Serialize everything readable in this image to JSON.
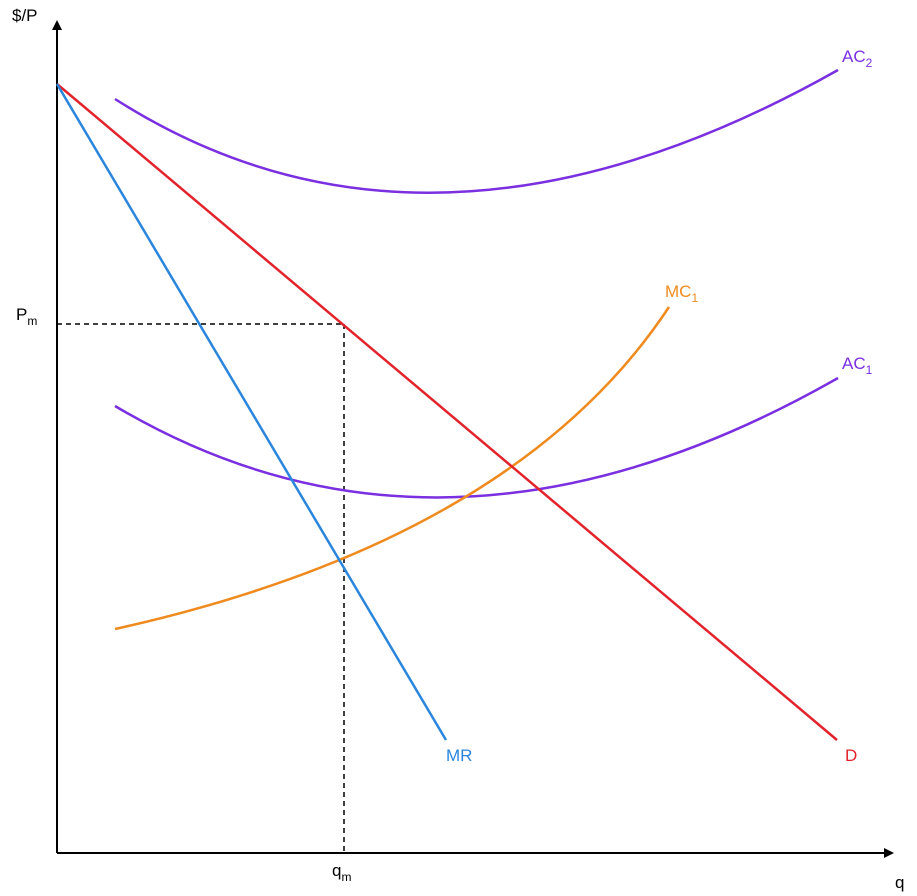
{
  "axes": {
    "y_label": "$/P",
    "x_label": "q"
  },
  "marks": {
    "price": {
      "main": "P",
      "sub": "m"
    },
    "quantity": {
      "main": "q",
      "sub": "m"
    }
  },
  "curves": {
    "ac2": {
      "main": "AC",
      "sub": "2",
      "color": "#7a2fe0"
    },
    "mc1": {
      "main": "MC",
      "sub": "1",
      "color": "#ee8a1e"
    },
    "ac1": {
      "main": "AC",
      "sub": "1",
      "color": "#7a2fe0"
    },
    "mr": {
      "label": "MR",
      "color": "#2a86dd"
    },
    "d": {
      "label": "D",
      "color": "#e3232b"
    }
  },
  "colors": {
    "axis": "#000000",
    "guide": "#000000"
  }
}
